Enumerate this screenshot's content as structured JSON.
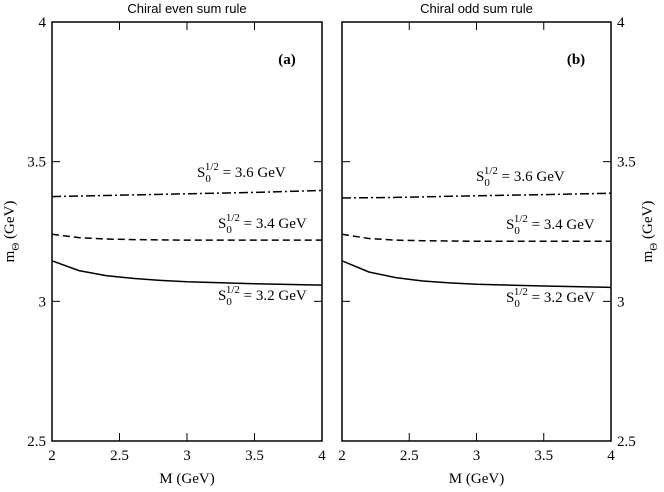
{
  "chart_data": [
    {
      "type": "line",
      "title": "Chiral even sum rule",
      "panel_label": "(a)",
      "x_label": "M (GeV)",
      "y_label": {
        "base": "m",
        "sub": "Θ",
        "text": " (GeV)"
      },
      "xlim": [
        2,
        4
      ],
      "ylim": [
        2.5,
        4
      ],
      "xticks": [
        2,
        2.5,
        3,
        3.5,
        4
      ],
      "yticks": [
        2.5,
        3,
        3.5,
        4
      ],
      "y_axis_side": "left",
      "x": [
        2,
        2.2,
        2.4,
        2.6,
        2.8,
        3,
        3.5,
        4
      ],
      "series": [
        {
          "label": {
            "base": "S",
            "sub": "0",
            "sup": "1/2",
            "text": " = 3.2 GeV"
          },
          "color": "#000000",
          "dash": "solid",
          "values": [
            3.145,
            3.11,
            3.092,
            3.082,
            3.075,
            3.07,
            3.063,
            3.058
          ]
        },
        {
          "label": {
            "base": "S",
            "sub": "0",
            "sup": "1/2",
            "text": " = 3.4 GeV"
          },
          "color": "#000000",
          "dash": "dashed",
          "values": [
            3.24,
            3.228,
            3.223,
            3.221,
            3.22,
            3.219,
            3.219,
            3.219
          ]
        },
        {
          "label": {
            "base": "S",
            "sub": "0",
            "sup": "1/2",
            "text": " = 3.6 GeV"
          },
          "color": "#000000",
          "dash": "dashdot",
          "values": [
            3.375,
            3.377,
            3.379,
            3.381,
            3.383,
            3.385,
            3.39,
            3.397
          ]
        }
      ]
    },
    {
      "type": "line",
      "title": "Chiral odd sum rule",
      "panel_label": "(b)",
      "x_label": "M (GeV)",
      "y_label": {
        "base": "m",
        "sub": "Θ",
        "text": " (GeV)"
      },
      "xlim": [
        2,
        4
      ],
      "ylim": [
        2.5,
        4
      ],
      "xticks": [
        2,
        2.5,
        3,
        3.5,
        4
      ],
      "yticks": [
        2.5,
        3,
        3.5,
        4
      ],
      "y_axis_side": "right",
      "x": [
        2,
        2.2,
        2.4,
        2.6,
        2.8,
        3,
        3.5,
        4
      ],
      "series": [
        {
          "label": {
            "base": "S",
            "sub": "0",
            "sup": "1/2",
            "text": " = 3.2 GeV"
          },
          "color": "#000000",
          "dash": "solid",
          "values": [
            3.145,
            3.105,
            3.085,
            3.073,
            3.066,
            3.061,
            3.055,
            3.05
          ]
        },
        {
          "label": {
            "base": "S",
            "sub": "0",
            "sup": "1/2",
            "text": " = 3.4 GeV"
          },
          "color": "#000000",
          "dash": "dashed",
          "values": [
            3.24,
            3.225,
            3.219,
            3.217,
            3.216,
            3.215,
            3.215,
            3.215
          ]
        },
        {
          "label": {
            "base": "S",
            "sub": "0",
            "sup": "1/2",
            "text": " = 3.6 GeV"
          },
          "color": "#000000",
          "dash": "dashdot",
          "values": [
            3.37,
            3.371,
            3.372,
            3.374,
            3.376,
            3.378,
            3.382,
            3.387
          ]
        }
      ]
    }
  ]
}
